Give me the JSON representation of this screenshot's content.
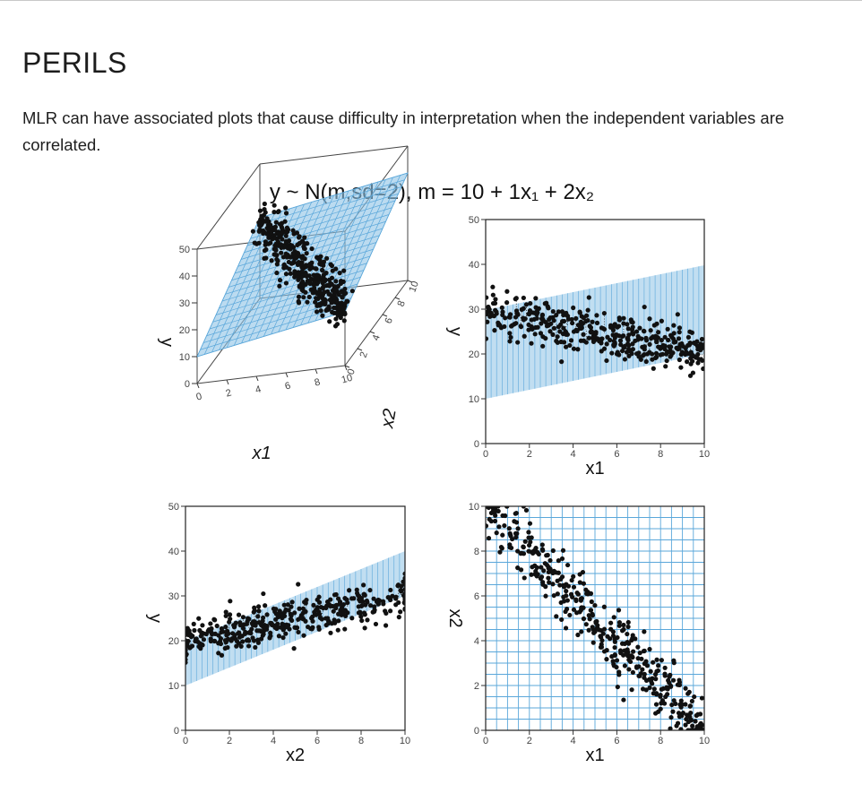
{
  "page": {
    "title": "PERILS",
    "description": "MLR can have associated plots that cause difficulty in interpretation when the independent variables are correlated."
  },
  "colors": {
    "plane": "#8ec3e6",
    "grid": "#5aa7da",
    "points": "#111111",
    "frame": "#222222"
  },
  "chart_data": [
    {
      "type": "scatter3d",
      "panel": "3d-view",
      "title": "y ~ N(m,sd=2), m = 10 + 1x₁ + 2x₂",
      "xlabel": "x1",
      "ylabel": "x2",
      "zlabel": "y",
      "x_ticks": [
        "0",
        "2",
        "4",
        "6",
        "8",
        "10"
      ],
      "y_ticks": [
        "0",
        "2",
        "4",
        "6",
        "8",
        "10"
      ],
      "z_ticks": [
        "0",
        "10",
        "20",
        "30",
        "40",
        "50"
      ],
      "xlim": [
        0,
        10
      ],
      "ylim": [
        0,
        10
      ],
      "zlim": [
        0,
        50
      ],
      "plane": "y = 10 + 1*x1 + 2*x2",
      "relationship": "x2 ≈ 10 - x1 (strongly negatively correlated)",
      "n_points": 400,
      "noise_sd": 2
    },
    {
      "type": "scatter",
      "panel": "y-vs-x1",
      "xlabel": "x1",
      "ylabel": "y",
      "x_ticks": [
        "0",
        "2",
        "4",
        "6",
        "8",
        "10"
      ],
      "y_ticks": [
        "0",
        "10",
        "20",
        "30",
        "40",
        "50"
      ],
      "xlim": [
        0,
        10
      ],
      "ylim": [
        0,
        50
      ],
      "plane_band": "projection of fitted plane",
      "trend": "y decreases from about 29 to about 21 as x1 goes 0 to 10"
    },
    {
      "type": "scatter",
      "panel": "y-vs-x2",
      "xlabel": "x2",
      "ylabel": "y",
      "x_ticks": [
        "0",
        "2",
        "4",
        "6",
        "8",
        "10"
      ],
      "y_ticks": [
        "0",
        "10",
        "20",
        "30",
        "40",
        "50"
      ],
      "xlim": [
        0,
        10
      ],
      "ylim": [
        0,
        50
      ],
      "plane_band": "projection of fitted plane",
      "trend": "y increases from about 20 to about 28 as x2 goes 0 to 10"
    },
    {
      "type": "scatter",
      "panel": "x2-vs-x1",
      "xlabel": "x1",
      "ylabel": "x2",
      "x_ticks": [
        "0",
        "2",
        "4",
        "6",
        "8",
        "10"
      ],
      "y_ticks": [
        "0",
        "2",
        "4",
        "6",
        "8",
        "10"
      ],
      "xlim": [
        0,
        10
      ],
      "ylim": [
        0,
        10
      ],
      "trend": "x2 decreases from about 10 to about 0 as x1 goes 0 to 10"
    }
  ]
}
